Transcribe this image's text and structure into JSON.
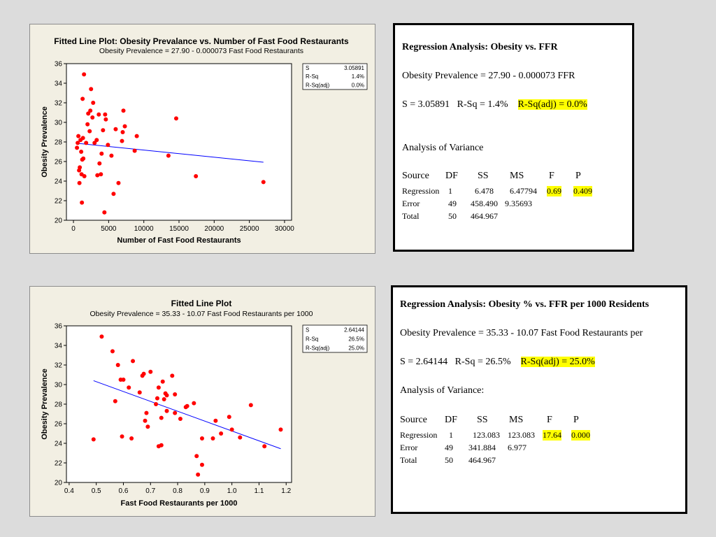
{
  "colors": {
    "point": "#ff0000",
    "fit_line": "#0000ff",
    "highlight": "#ffff00",
    "panel_bg": "#f2efe3"
  },
  "chart_data": [
    {
      "type": "scatter",
      "title": "Fitted Line Plot: Obesity Prevalance vs. Number of Fast Food Restaurants",
      "subtitle": "Obesity Prevalence =  27.90 - 0.000073 Fast Food Restaurants",
      "xlabel": "Number of Fast Food Restaurants",
      "ylabel": "Obesity Prevalence",
      "xlim": [
        -1000,
        31000
      ],
      "ylim": [
        20,
        36
      ],
      "xticks": [
        0,
        5000,
        10000,
        15000,
        20000,
        25000,
        30000
      ],
      "yticks": [
        20,
        22,
        24,
        26,
        28,
        30,
        32,
        34,
        36
      ],
      "fit_line": {
        "intercept": 27.9,
        "slope": -7.3e-05,
        "x_range": [
          400,
          27000
        ]
      },
      "stats": [
        {
          "label": "S",
          "value": "3.05891"
        },
        {
          "label": "R-Sq",
          "value": "1.4%"
        },
        {
          "label": "R-Sq(adj)",
          "value": "0.0%"
        }
      ],
      "points": [
        [
          500,
          27.4
        ],
        [
          600,
          27.9
        ],
        [
          700,
          28.6
        ],
        [
          800,
          25.1
        ],
        [
          850,
          23.8
        ],
        [
          900,
          25.4
        ],
        [
          1000,
          28.2
        ],
        [
          1100,
          27.0
        ],
        [
          1150,
          24.7
        ],
        [
          1200,
          21.8
        ],
        [
          1250,
          26.2
        ],
        [
          1300,
          32.4
        ],
        [
          1350,
          28.4
        ],
        [
          1400,
          26.3
        ],
        [
          1500,
          34.9
        ],
        [
          1550,
          24.5
        ],
        [
          1800,
          27.9
        ],
        [
          2000,
          29.8
        ],
        [
          2100,
          30.9
        ],
        [
          2300,
          29.1
        ],
        [
          2400,
          31.2
        ],
        [
          2500,
          33.4
        ],
        [
          2700,
          30.5
        ],
        [
          2800,
          32.0
        ],
        [
          3000,
          27.9
        ],
        [
          3300,
          28.2
        ],
        [
          3400,
          24.6
        ],
        [
          3600,
          30.8
        ],
        [
          3700,
          25.8
        ],
        [
          3900,
          24.7
        ],
        [
          4000,
          26.8
        ],
        [
          4200,
          29.2
        ],
        [
          4400,
          20.8
        ],
        [
          4500,
          30.8
        ],
        [
          4600,
          30.3
        ],
        [
          4900,
          27.7
        ],
        [
          5400,
          26.6
        ],
        [
          5700,
          22.7
        ],
        [
          6000,
          29.3
        ],
        [
          6400,
          23.8
        ],
        [
          6900,
          28.1
        ],
        [
          7000,
          29.0
        ],
        [
          7100,
          31.2
        ],
        [
          7300,
          29.6
        ],
        [
          8700,
          27.1
        ],
        [
          9000,
          28.6
        ],
        [
          13500,
          26.6
        ],
        [
          14600,
          30.4
        ],
        [
          17400,
          24.5
        ],
        [
          27000,
          23.9
        ]
      ]
    },
    {
      "type": "scatter",
      "title": "Fitted Line Plot",
      "subtitle": "Obesity Prevalence =  35.33 - 10.07 Fast Food Restaurants per 1000",
      "xlabel": "Fast Food Restaurants per 1000",
      "ylabel": "Obesity Prevalence",
      "xlim": [
        0.39,
        1.22
      ],
      "ylim": [
        20,
        36
      ],
      "xticks": [
        0.4,
        0.5,
        0.6,
        0.7,
        0.8,
        0.9,
        1.0,
        1.1,
        1.2
      ],
      "xtick_labels": [
        "0.4",
        "0.5",
        "0.6",
        "0.7",
        "0.8",
        "0.9",
        "1.0",
        "1.1",
        "1.2"
      ],
      "yticks": [
        20,
        22,
        24,
        26,
        28,
        30,
        32,
        34,
        36
      ],
      "fit_line": {
        "intercept": 35.33,
        "slope": -10.07,
        "x_range": [
          0.49,
          1.18
        ]
      },
      "stats": [
        {
          "label": "S",
          "value": "2.64144"
        },
        {
          "label": "R-Sq",
          "value": "26.5%"
        },
        {
          "label": "R-Sq(adj)",
          "value": "25.0%"
        }
      ],
      "points": [
        [
          0.49,
          24.4
        ],
        [
          0.52,
          34.9
        ],
        [
          0.56,
          33.4
        ],
        [
          0.57,
          28.3
        ],
        [
          0.58,
          32.0
        ],
        [
          0.59,
          30.5
        ],
        [
          0.6,
          30.5
        ],
        [
          0.595,
          24.7
        ],
        [
          0.62,
          29.7
        ],
        [
          0.63,
          24.5
        ],
        [
          0.635,
          32.4
        ],
        [
          0.66,
          29.2
        ],
        [
          0.67,
          30.9
        ],
        [
          0.675,
          31.1
        ],
        [
          0.68,
          26.3
        ],
        [
          0.685,
          27.1
        ],
        [
          0.69,
          25.7
        ],
        [
          0.7,
          31.3
        ],
        [
          0.72,
          28.0
        ],
        [
          0.725,
          28.6
        ],
        [
          0.73,
          29.7
        ],
        [
          0.73,
          23.7
        ],
        [
          0.74,
          23.8
        ],
        [
          0.74,
          26.6
        ],
        [
          0.745,
          30.3
        ],
        [
          0.75,
          28.5
        ],
        [
          0.755,
          29.1
        ],
        [
          0.76,
          27.3
        ],
        [
          0.76,
          28.9
        ],
        [
          0.78,
          30.9
        ],
        [
          0.79,
          29.0
        ],
        [
          0.79,
          27.1
        ],
        [
          0.81,
          26.5
        ],
        [
          0.83,
          27.7
        ],
        [
          0.835,
          27.8
        ],
        [
          0.86,
          28.1
        ],
        [
          0.87,
          22.7
        ],
        [
          0.875,
          20.8
        ],
        [
          0.89,
          21.8
        ],
        [
          0.89,
          24.5
        ],
        [
          0.93,
          24.5
        ],
        [
          0.94,
          26.3
        ],
        [
          0.96,
          25.0
        ],
        [
          0.99,
          26.7
        ],
        [
          1.0,
          25.4
        ],
        [
          1.03,
          24.6
        ],
        [
          1.07,
          27.9
        ],
        [
          1.12,
          23.7
        ],
        [
          1.18,
          25.4
        ]
      ]
    }
  ],
  "regression_1": {
    "title": "Regression Analysis: Obesity vs. FFR",
    "equation": "Obesity Prevalence = 27.90 - 0.000073 FFR",
    "stats_plain": "S = 3.05891   R-Sq = 1.4%",
    "stats_highlight": "R-Sq(adj) = 0.0%",
    "anova_title": "Analysis of Variance",
    "headers": [
      "Source",
      "DF",
      "SS",
      "MS",
      "F",
      "P"
    ],
    "rows": [
      [
        "Regression",
        "1",
        "6.478",
        "6.47794",
        "0.69",
        "0.409"
      ],
      [
        "Error",
        "49",
        "458.490",
        "9.35693",
        "",
        ""
      ],
      [
        "Total",
        "50",
        "464.967",
        "",
        "",
        ""
      ]
    ]
  },
  "regression_2": {
    "title": "Regression Analysis: Obesity % vs. FFR per 1000 Residents",
    "equation": "Obesity Prevalence = 35.33 - 10.07 Fast Food Restaurants per",
    "stats_plain": "S = 2.64144   R-Sq = 26.5%",
    "stats_highlight": "R-Sq(adj) = 25.0%",
    "anova_title": "Analysis of Variance:",
    "headers": [
      "Source",
      "DF",
      "SS",
      "MS",
      "F",
      "P"
    ],
    "rows": [
      [
        "Regression",
        "1",
        "123.083",
        "123.083",
        "17.64",
        "0.000"
      ],
      [
        "Error",
        "49",
        "341.884",
        "6.977",
        "",
        ""
      ],
      [
        "Total",
        "50",
        "464.967",
        "",
        "",
        ""
      ]
    ]
  }
}
